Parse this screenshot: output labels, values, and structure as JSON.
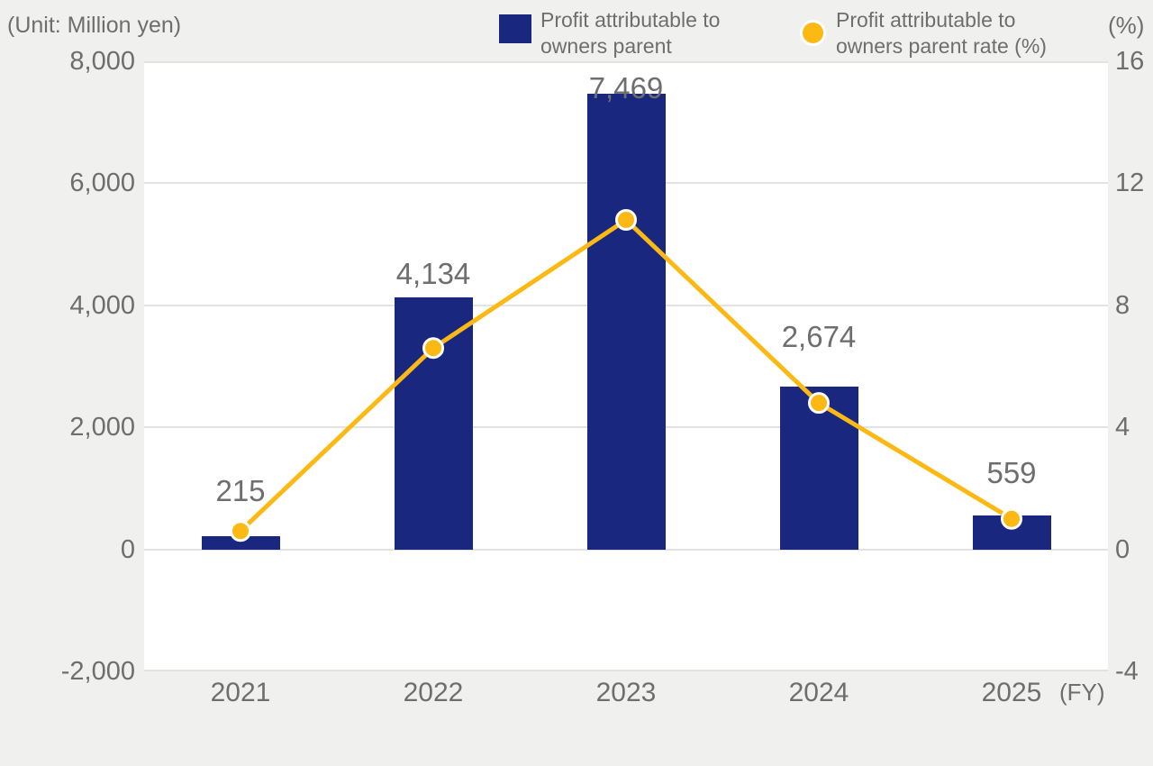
{
  "legend": {
    "bar": {
      "line1": "Profit attributable to",
      "line2": "owners parent"
    },
    "line": {
      "line1": "Profit attributable to",
      "line2": "owners parent rate (%)"
    }
  },
  "colors": {
    "bar": "#19277f",
    "line": "#fcb813",
    "dot_ring": "#ffffff",
    "text": "#6e6e6e",
    "grid": "#e3e3e3",
    "page_bg": "#f0f0ee",
    "plot_bg": "#ffffff"
  },
  "chart_data": {
    "type": "bar",
    "subtype": "combo-bar-line-dual-axis",
    "categories": [
      "2021",
      "2022",
      "2023",
      "2024",
      "2025"
    ],
    "series": [
      {
        "name": "Profit attributable to owners parent",
        "type": "bar",
        "axis": "left",
        "unit": "Million yen",
        "values": [
          215,
          4134,
          7469,
          2674,
          559
        ],
        "value_labels": [
          "215",
          "4,134",
          "7,469",
          "2,674",
          "559"
        ],
        "color": "#19277f"
      },
      {
        "name": "Profit attributable to owners parent rate (%)",
        "type": "line",
        "axis": "right",
        "unit": "%",
        "values": [
          0.6,
          6.6,
          10.8,
          4.8,
          1.0
        ],
        "note": "values estimated from plotted marker positions; not labeled in chart",
        "color": "#fcb813"
      }
    ],
    "left_axis": {
      "label": "(Unit: Million yen)",
      "min": -2000,
      "max": 8000,
      "tick_values": [
        8000,
        6000,
        4000,
        2000,
        0,
        -2000
      ],
      "tick_labels": [
        "8,000",
        "6,000",
        "4,000",
        "2,000",
        "0",
        "-2,000"
      ]
    },
    "right_axis": {
      "label": "(%)",
      "min": -4,
      "max": 16,
      "tick_values": [
        16,
        12,
        8,
        4,
        0,
        -4
      ],
      "tick_labels": [
        "16",
        "12",
        "8",
        "4",
        "0",
        "-4"
      ]
    },
    "x_axis": {
      "label": "(FY)"
    },
    "grid": true,
    "legend_position": "top"
  }
}
